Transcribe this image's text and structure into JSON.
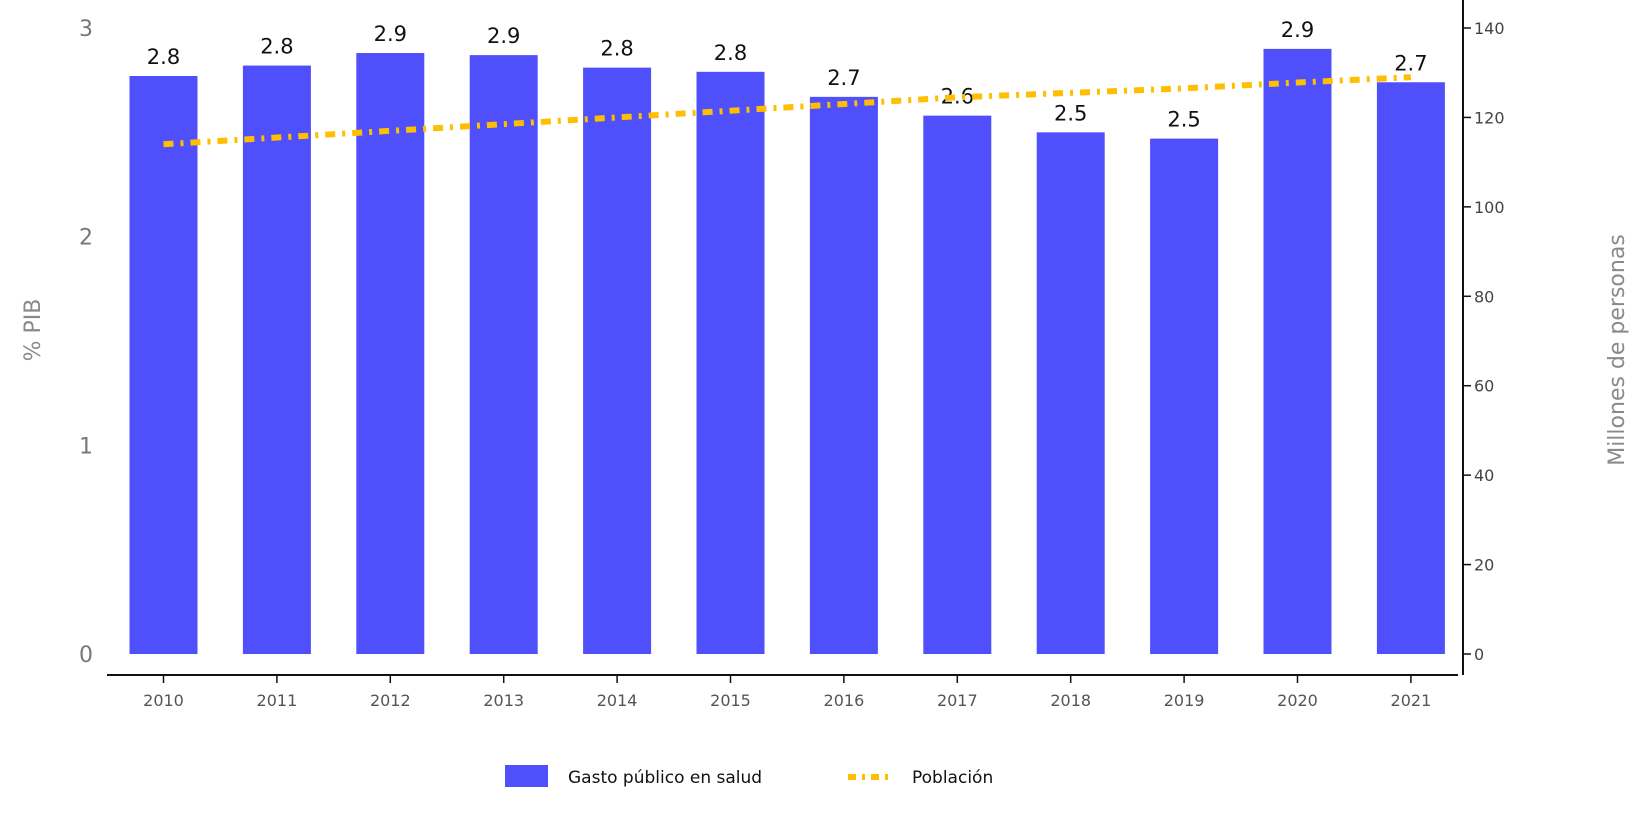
{
  "chart_data": {
    "type": "bar",
    "categories": [
      "2010",
      "2011",
      "2012",
      "2013",
      "2014",
      "2015",
      "2016",
      "2017",
      "2018",
      "2019",
      "2020",
      "2021"
    ],
    "series": [
      {
        "name": "Gasto público en salud",
        "type": "bar",
        "axis": "left",
        "color": "#4f4ffb",
        "values": [
          2.77,
          2.82,
          2.88,
          2.87,
          2.81,
          2.79,
          2.67,
          2.58,
          2.5,
          2.47,
          2.9,
          2.74
        ],
        "labels": [
          "2.8",
          "2.8",
          "2.9",
          "2.9",
          "2.8",
          "2.8",
          "2.7",
          "2.6",
          "2.5",
          "2.5",
          "2.9",
          "2.7"
        ]
      },
      {
        "name": "Población",
        "type": "line",
        "style": "dash-dot",
        "axis": "right",
        "color": "#ffbf00",
        "values": [
          114.0,
          115.5,
          117.0,
          118.5,
          120.0,
          121.5,
          123.0,
          124.5,
          125.5,
          126.5,
          127.8,
          129.0
        ]
      }
    ],
    "ylabel": "% PIB",
    "y2label": "Millones de personas",
    "ylim": [
      0,
      3
    ],
    "y2lim": [
      0,
      140
    ],
    "yticks": [
      "0",
      "1",
      "2",
      "3"
    ],
    "y2ticks": [
      "0",
      "20",
      "40",
      "60",
      "80",
      "100",
      "120",
      "140"
    ],
    "grid": false,
    "legend": "bottom-center"
  }
}
